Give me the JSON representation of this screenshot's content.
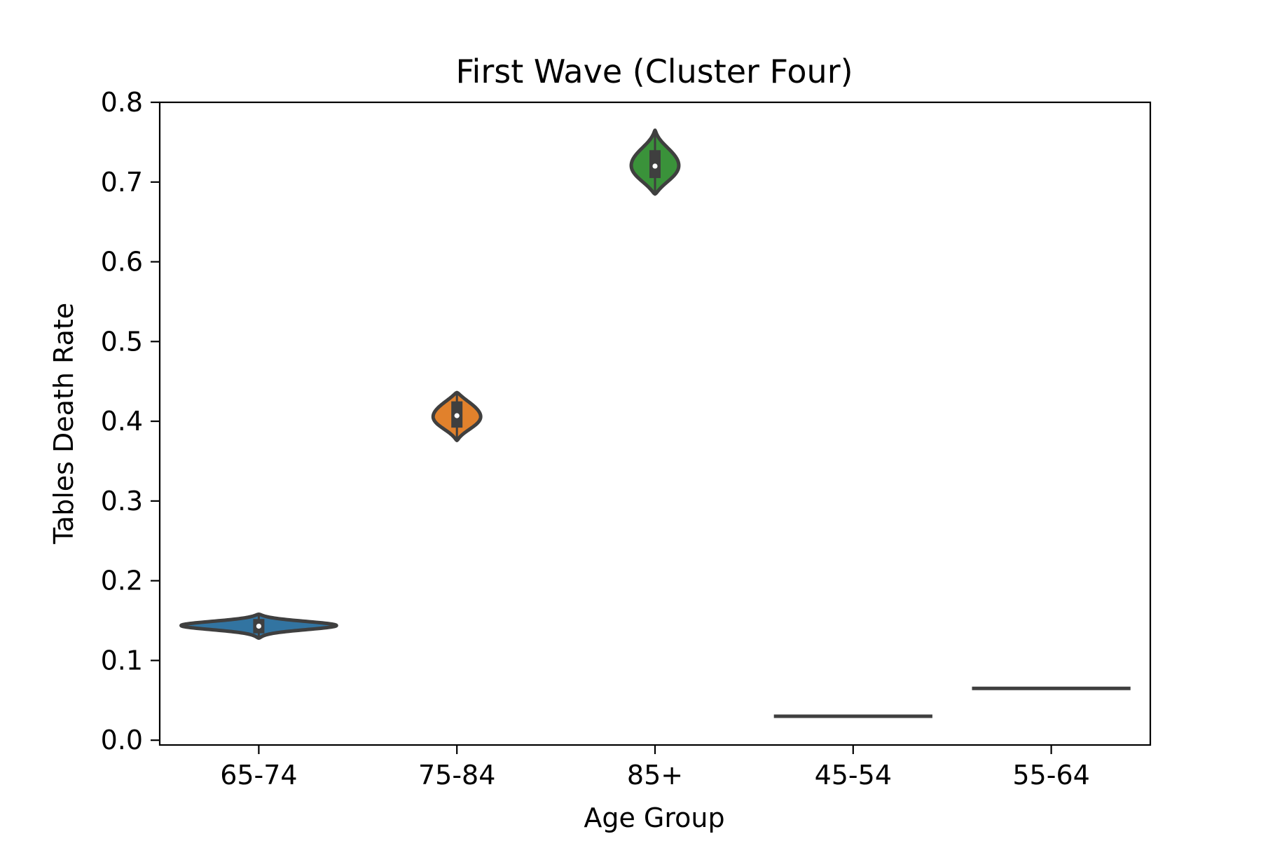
{
  "chart_data": {
    "type": "violin",
    "title": "First Wave (Cluster Four)",
    "xlabel": "Age Group",
    "ylabel": "Tables Death Rate",
    "categories": [
      "65-74",
      "75-84",
      "85+",
      "45-54",
      "55-64"
    ],
    "ylim": [
      -0.006,
      0.8
    ],
    "yticks": [
      0.0,
      0.1,
      0.2,
      0.3,
      0.4,
      0.5,
      0.6,
      0.7,
      0.8
    ],
    "ytick_labels": [
      "0.0",
      "0.1",
      "0.2",
      "0.3",
      "0.4",
      "0.5",
      "0.6",
      "0.7",
      "0.8"
    ],
    "grid": false,
    "legend": "none",
    "series": [
      {
        "category": "65-74",
        "color": "#3274a1",
        "min": 0.128,
        "max": 0.158,
        "q1": 0.134,
        "median": 0.143,
        "q3": 0.152,
        "mode": 0.144,
        "density": "wide"
      },
      {
        "category": "75-84",
        "color": "#e1812c",
        "min": 0.376,
        "max": 0.436,
        "q1": 0.392,
        "median": 0.407,
        "q3": 0.425,
        "mode": 0.406,
        "density": "medium"
      },
      {
        "category": "85+",
        "color": "#3a923a",
        "min": 0.685,
        "max": 0.765,
        "q1": 0.705,
        "median": 0.72,
        "q3": 0.74,
        "mode": 0.718,
        "density": "medium"
      },
      {
        "category": "45-54",
        "color": "#c03d3e",
        "min": 0.03,
        "max": 0.03,
        "q1": 0.03,
        "median": 0.03,
        "q3": 0.03,
        "mode": 0.03,
        "density": "flat"
      },
      {
        "category": "55-64",
        "color": "#9372b2",
        "min": 0.065,
        "max": 0.065,
        "q1": 0.065,
        "median": 0.065,
        "q3": 0.065,
        "mode": 0.065,
        "density": "flat"
      }
    ]
  }
}
